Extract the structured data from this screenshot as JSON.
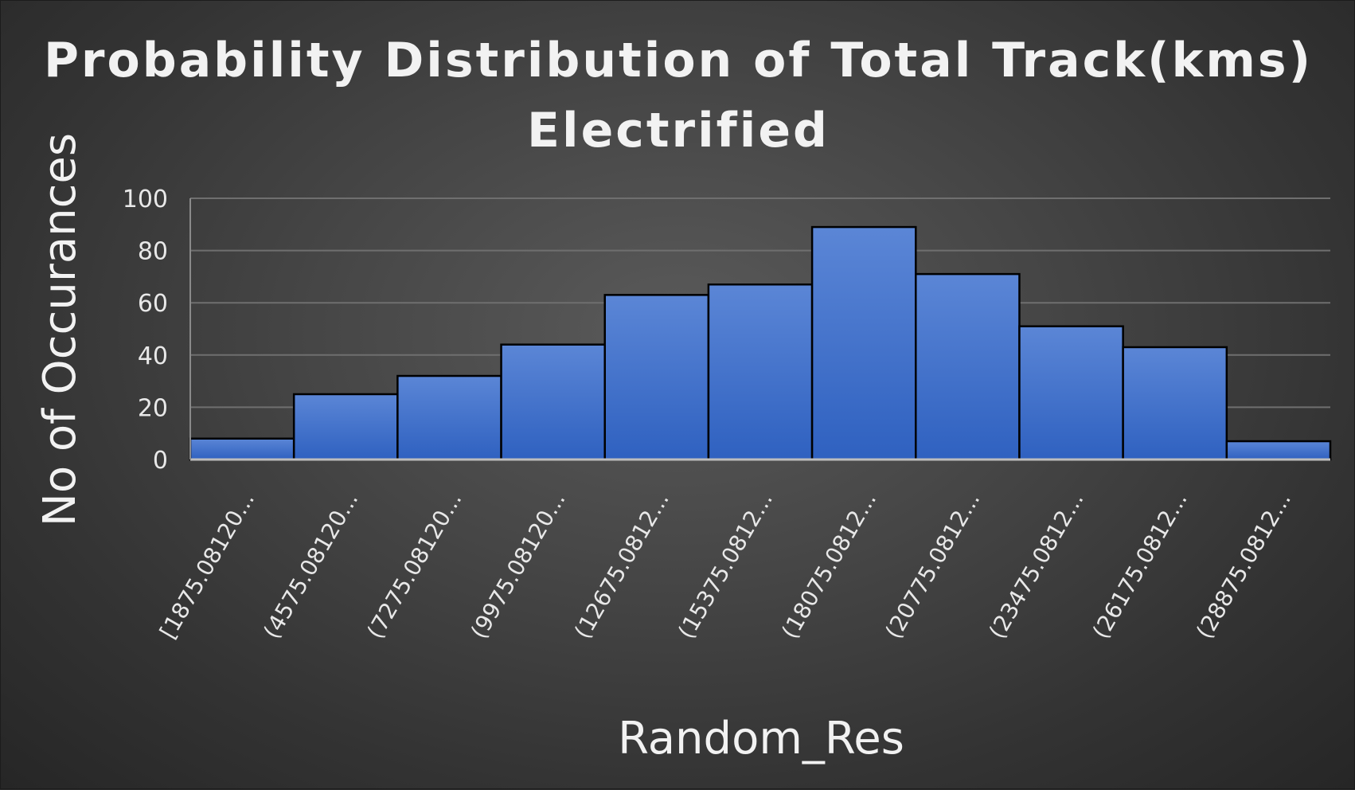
{
  "chart_data": {
    "type": "bar",
    "title_lines": [
      "Probability Distribution of Total Track(kms)",
      "Electrified"
    ],
    "xlabel": "Random_Res",
    "ylabel": "No of Occurances",
    "categories": [
      "[1875.08120...",
      "(4575.08120...",
      "(7275.08120...",
      "(9975.08120...",
      "(12675.0812...",
      "(15375.0812...",
      "(18075.0812...",
      "(20775.0812...",
      "(23475.0812...",
      "(26175.0812...",
      "(28875.0812..."
    ],
    "values": [
      8,
      25,
      32,
      44,
      63,
      67,
      89,
      71,
      51,
      43,
      7
    ],
    "ylim": [
      0,
      100
    ],
    "yticks": [
      0,
      20,
      40,
      60,
      80,
      100
    ],
    "grid": true,
    "legend": "none",
    "bar_color": "#3b6cc6",
    "bar_edge_color": "#000000"
  }
}
